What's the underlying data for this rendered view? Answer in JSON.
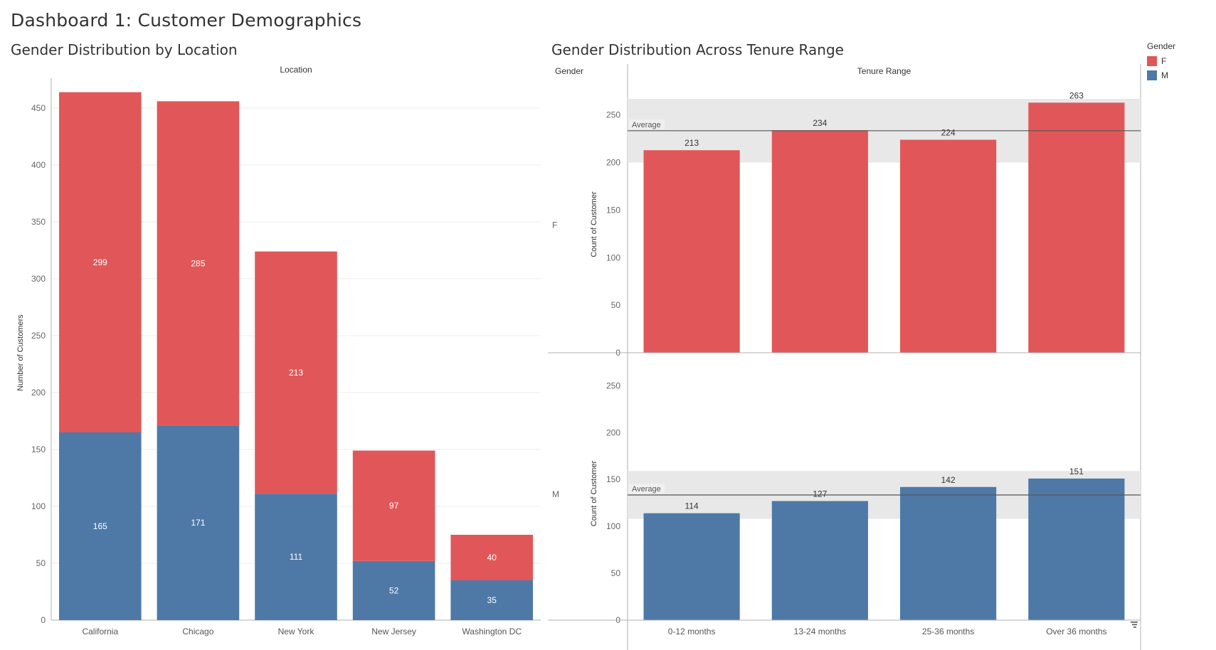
{
  "dashboard": {
    "title": "Dashboard 1: Customer Demographics"
  },
  "colors": {
    "female": "#e15759",
    "male": "#4e79a7",
    "band": "#e8e8e8",
    "grid": "#ececec",
    "axis": "#b0b0b0",
    "refline": "#555555"
  },
  "legend": {
    "title": "Gender",
    "items": [
      {
        "label": "F",
        "color": "#e15759"
      },
      {
        "label": "M",
        "color": "#4e79a7"
      }
    ]
  },
  "icons": {
    "sort": "sort-icon"
  },
  "chart_data": [
    {
      "type": "bar",
      "stacked": true,
      "title": "Gender Distribution by Location",
      "header": "Location",
      "ylabel": "Number of Customers",
      "xlabel": "",
      "ylim": [
        0,
        470
      ],
      "yticks": [
        0,
        50,
        100,
        150,
        200,
        250,
        300,
        350,
        400,
        450
      ],
      "categories": [
        "California",
        "Chicago",
        "New York",
        "New Jersey",
        "Washington DC"
      ],
      "series": [
        {
          "name": "M",
          "values": [
            165,
            171,
            111,
            52,
            35
          ]
        },
        {
          "name": "F",
          "values": [
            299,
            285,
            213,
            97,
            40
          ]
        }
      ],
      "grid": true
    },
    {
      "type": "bar",
      "title": "Gender Distribution Across Tenure Range",
      "row_header": "Gender",
      "header": "Tenure Range",
      "ylabel": "Count of Customer",
      "ylim": [
        0,
        270
      ],
      "yticks": [
        0,
        50,
        100,
        150,
        200,
        250
      ],
      "categories": [
        "0-12 months",
        "13-24 months",
        "25-36 months",
        "Over 36 months"
      ],
      "panels": [
        {
          "row": "F",
          "values": [
            213,
            234,
            224,
            263
          ],
          "average": 233.5,
          "band": [
            200,
            267
          ],
          "reference_label": "Average"
        },
        {
          "row": "M",
          "values": [
            114,
            127,
            142,
            151
          ],
          "average": 133.5,
          "band": [
            108,
            159
          ],
          "reference_label": "Average"
        }
      ]
    }
  ]
}
